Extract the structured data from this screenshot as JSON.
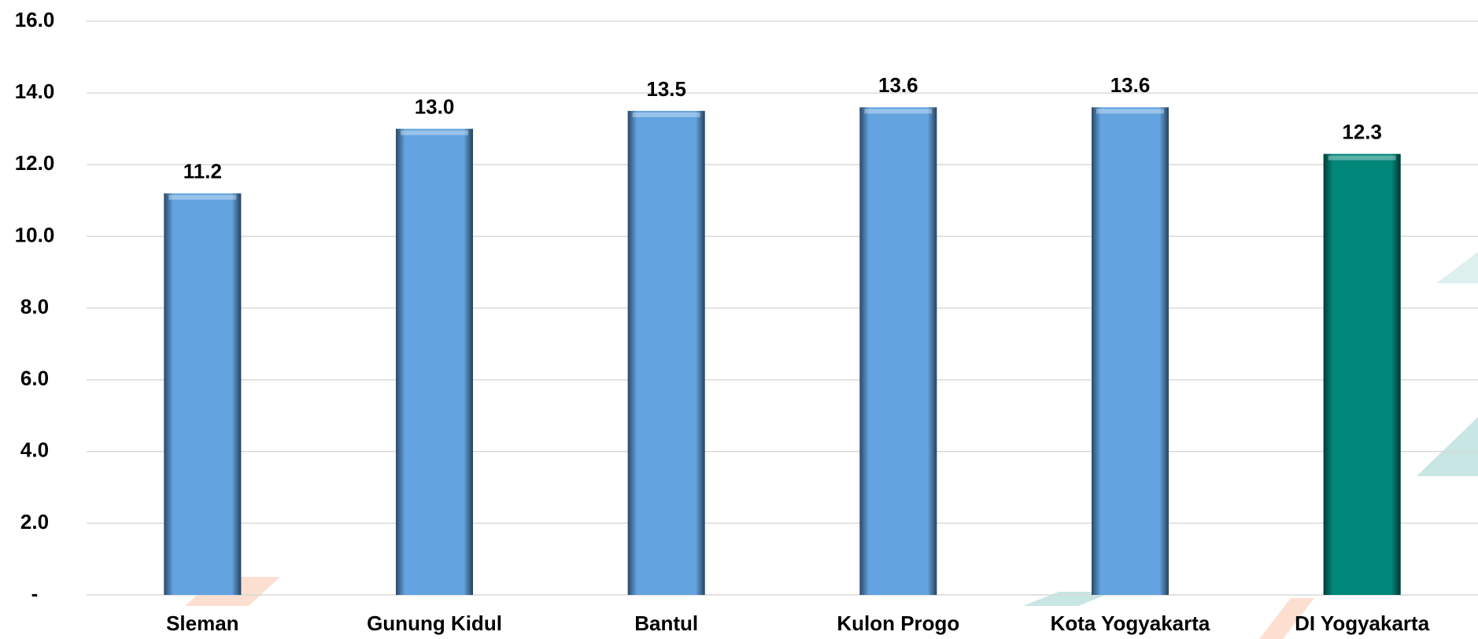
{
  "chart_data": {
    "type": "bar",
    "categories": [
      "Sleman",
      "Gunung Kidul",
      "Bantul",
      "Kulon Progo",
      "Kota Yogyakarta",
      "DI Yogyakarta"
    ],
    "values": [
      11.2,
      13.0,
      13.5,
      13.6,
      13.6,
      12.3
    ],
    "value_labels": [
      "11.2",
      "13.0",
      "13.5",
      "13.6",
      "13.6",
      "12.3"
    ],
    "colors": [
      "#62a3e0",
      "#62a3e0",
      "#62a3e0",
      "#62a3e0",
      "#62a3e0",
      "#00877a"
    ],
    "ylim": [
      0,
      16
    ],
    "yticks": [
      {
        "value": 0,
        "label": "-"
      },
      {
        "value": 2,
        "label": "2.0"
      },
      {
        "value": 4,
        "label": "4.0"
      },
      {
        "value": 6,
        "label": "6.0"
      },
      {
        "value": 8,
        "label": "8.0"
      },
      {
        "value": 10,
        "label": "10.0"
      },
      {
        "value": 12,
        "label": "12.0"
      },
      {
        "value": 14,
        "label": "14.0"
      },
      {
        "value": 16,
        "label": "16.0"
      }
    ],
    "grid": true
  }
}
